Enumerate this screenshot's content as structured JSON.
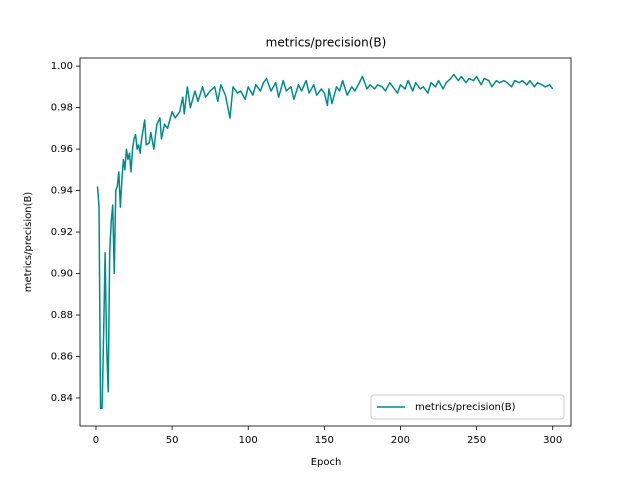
{
  "chart_data": {
    "type": "line",
    "title": "metrics/precision(B)",
    "xlabel": "Epoch",
    "ylabel": "metrics/precision(B)",
    "x": [
      1,
      2,
      3,
      4,
      5,
      6,
      7,
      8,
      9,
      10,
      11,
      12,
      13,
      14,
      15,
      16,
      17,
      18,
      19,
      20,
      21,
      22,
      23,
      24,
      25,
      26,
      27,
      28,
      29,
      30,
      32,
      33,
      35,
      36,
      38,
      40,
      42,
      43,
      45,
      47,
      50,
      52,
      55,
      57,
      58,
      60,
      62,
      65,
      67,
      70,
      72,
      75,
      78,
      80,
      82,
      85,
      88,
      90,
      93,
      95,
      98,
      100,
      103,
      105,
      108,
      110,
      112,
      115,
      118,
      120,
      123,
      125,
      128,
      130,
      133,
      135,
      138,
      140,
      143,
      145,
      148,
      150,
      152,
      153,
      155,
      158,
      160,
      162,
      165,
      168,
      170,
      173,
      175,
      178,
      180,
      183,
      185,
      188,
      190,
      193,
      195,
      198,
      200,
      203,
      205,
      208,
      210,
      213,
      215,
      218,
      220,
      223,
      225,
      228,
      230,
      233,
      235,
      238,
      240,
      243,
      245,
      248,
      250,
      253,
      255,
      258,
      260,
      263,
      265,
      268,
      270,
      273,
      275,
      278,
      280,
      283,
      285,
      288,
      290,
      293,
      295,
      298,
      300
    ],
    "series": [
      {
        "name": "metrics/precision(B)",
        "color": "#008b8b",
        "values": [
          0.942,
          0.932,
          0.835,
          0.835,
          0.87,
          0.91,
          0.865,
          0.843,
          0.91,
          0.925,
          0.933,
          0.9,
          0.94,
          0.942,
          0.949,
          0.932,
          0.945,
          0.955,
          0.95,
          0.96,
          0.955,
          0.958,
          0.949,
          0.96,
          0.965,
          0.967,
          0.96,
          0.962,
          0.958,
          0.965,
          0.974,
          0.962,
          0.963,
          0.968,
          0.96,
          0.972,
          0.975,
          0.965,
          0.972,
          0.97,
          0.978,
          0.975,
          0.978,
          0.985,
          0.977,
          0.99,
          0.98,
          0.988,
          0.983,
          0.99,
          0.985,
          0.988,
          0.99,
          0.983,
          0.991,
          0.986,
          0.975,
          0.99,
          0.987,
          0.988,
          0.984,
          0.99,
          0.986,
          0.991,
          0.988,
          0.992,
          0.994,
          0.988,
          0.992,
          0.985,
          0.993,
          0.988,
          0.99,
          0.984,
          0.991,
          0.988,
          0.993,
          0.987,
          0.991,
          0.986,
          0.989,
          0.987,
          0.981,
          0.989,
          0.982,
          0.99,
          0.988,
          0.993,
          0.986,
          0.99,
          0.988,
          0.992,
          0.995,
          0.989,
          0.991,
          0.989,
          0.991,
          0.99,
          0.988,
          0.992,
          0.99,
          0.987,
          0.991,
          0.989,
          0.993,
          0.988,
          0.992,
          0.989,
          0.99,
          0.987,
          0.992,
          0.99,
          0.993,
          0.989,
          0.992,
          0.994,
          0.996,
          0.993,
          0.995,
          0.992,
          0.994,
          0.993,
          0.995,
          0.991,
          0.994,
          0.993,
          0.99,
          0.993,
          0.992,
          0.993,
          0.992,
          0.99,
          0.993,
          0.992,
          0.993,
          0.991,
          0.993,
          0.99,
          0.992,
          0.991,
          0.99,
          0.991,
          0.989
        ]
      }
    ],
    "xlim": [
      -10.5,
      312
    ],
    "ylim": [
      0.8265,
      1.0039
    ],
    "xticks": [
      0,
      50,
      100,
      150,
      200,
      250,
      300
    ],
    "yticks": [
      0.84,
      0.86,
      0.88,
      {
        "value": 0.9,
        "label": "0.90"
      },
      0.92,
      0.94,
      0.96,
      0.98,
      {
        "value": 1.0,
        "label": "1.00"
      }
    ],
    "legend": "lower right"
  }
}
